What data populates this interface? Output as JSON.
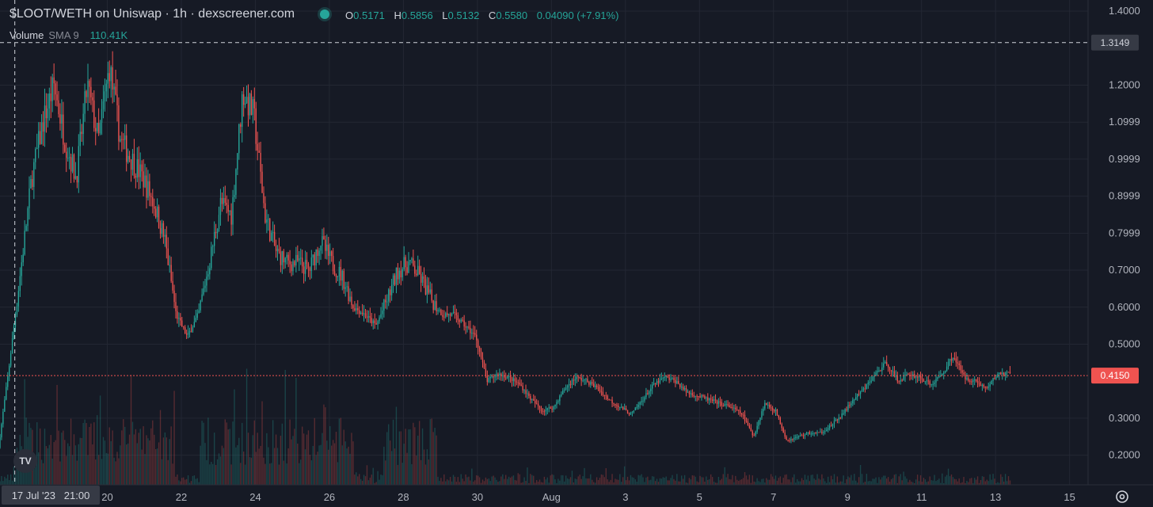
{
  "header": {
    "title": "$LOOT/WETH on Uniswap · 1h · dexscreener.com",
    "ohlc": [
      {
        "k": "O",
        "v": "0.5171"
      },
      {
        "k": "H",
        "v": "0.5856"
      },
      {
        "k": "L",
        "v": "0.5132"
      },
      {
        "k": "C",
        "v": "0.5580"
      },
      {
        "k": "",
        "v": "0.04090 (+7.91%)"
      }
    ],
    "volume_label": "Volume",
    "volume_sma": "SMA 9",
    "volume_value": "110.41K"
  },
  "colors": {
    "up": "#26a69a",
    "down": "#ef5350",
    "background": "#161a25",
    "grid": "#232733"
  },
  "icons": {
    "logo": "tradingview-logo-icon",
    "settings": "gear-icon"
  },
  "chart_data": {
    "type": "candlestick",
    "title": "$LOOT/WETH on Uniswap · 1h · dexscreener.com",
    "interval": "1h",
    "grid": true,
    "y_axis": {
      "side": "right",
      "ylim": [
        0.12,
        1.43
      ],
      "ticks": [
        1.4,
        1.2,
        1.0999,
        0.9999,
        0.8999,
        0.7999,
        0.7,
        0.6,
        0.5,
        0.3,
        0.2
      ],
      "tick_labels": [
        "1.4000",
        "1.2000",
        "1.0999",
        "0.9999",
        "0.8999",
        "0.7999",
        "0.7000",
        "0.6000",
        "0.5000",
        "0.3000",
        "0.2000"
      ]
    },
    "x_axis": {
      "xlim_days": [
        17.1,
        46.5
      ],
      "ticks": [
        {
          "day": 20,
          "label": "20"
        },
        {
          "day": 22,
          "label": "22"
        },
        {
          "day": 24,
          "label": "24"
        },
        {
          "day": 26,
          "label": "26"
        },
        {
          "day": 28,
          "label": "28"
        },
        {
          "day": 30,
          "label": "30"
        },
        {
          "day": 32,
          "label": "Aug"
        },
        {
          "day": 34,
          "label": "3"
        },
        {
          "day": 36,
          "label": "5"
        },
        {
          "day": 38,
          "label": "7"
        },
        {
          "day": 40,
          "label": "9"
        },
        {
          "day": 42,
          "label": "11"
        },
        {
          "day": 44,
          "label": "13"
        },
        {
          "day": 46,
          "label": "15"
        }
      ]
    },
    "crosshair": {
      "price": 1.3149,
      "price_label": "1.3149",
      "day": 17.5,
      "time_label": "17 Jul '23   21:00"
    },
    "last_price": {
      "price": 0.415,
      "label": "0.4150"
    },
    "trend": [
      [
        17.1,
        0.22
      ],
      [
        17.4,
        0.45
      ],
      [
        17.7,
        0.7
      ],
      [
        18.0,
        0.95
      ],
      [
        18.3,
        1.1
      ],
      [
        18.6,
        1.2
      ],
      [
        18.9,
        1.05
      ],
      [
        19.2,
        0.95
      ],
      [
        19.5,
        1.2
      ],
      [
        19.8,
        1.05
      ],
      [
        20.1,
        1.25
      ],
      [
        20.4,
        1.05
      ],
      [
        20.7,
        1.0
      ],
      [
        21.0,
        0.95
      ],
      [
        21.3,
        0.88
      ],
      [
        21.6,
        0.78
      ],
      [
        21.9,
        0.58
      ],
      [
        22.2,
        0.52
      ],
      [
        22.5,
        0.58
      ],
      [
        22.8,
        0.72
      ],
      [
        23.1,
        0.88
      ],
      [
        23.4,
        0.85
      ],
      [
        23.7,
        1.18
      ],
      [
        24.0,
        1.12
      ],
      [
        24.3,
        0.85
      ],
      [
        24.6,
        0.75
      ],
      [
        24.9,
        0.72
      ],
      [
        25.2,
        0.72
      ],
      [
        25.5,
        0.7
      ],
      [
        25.8,
        0.78
      ],
      [
        26.1,
        0.72
      ],
      [
        26.4,
        0.68
      ],
      [
        26.7,
        0.6
      ],
      [
        27.0,
        0.58
      ],
      [
        27.3,
        0.55
      ],
      [
        27.6,
        0.62
      ],
      [
        27.9,
        0.7
      ],
      [
        28.2,
        0.72
      ],
      [
        28.5,
        0.68
      ],
      [
        28.8,
        0.62
      ],
      [
        29.1,
        0.58
      ],
      [
        29.4,
        0.58
      ],
      [
        29.7,
        0.55
      ],
      [
        30.0,
        0.52
      ],
      [
        30.3,
        0.4
      ],
      [
        30.6,
        0.42
      ],
      [
        30.9,
        0.41
      ],
      [
        31.2,
        0.39
      ],
      [
        31.5,
        0.35
      ],
      [
        31.8,
        0.32
      ],
      [
        32.1,
        0.33
      ],
      [
        32.4,
        0.38
      ],
      [
        32.7,
        0.41
      ],
      [
        33.0,
        0.4
      ],
      [
        33.3,
        0.38
      ],
      [
        33.6,
        0.35
      ],
      [
        33.9,
        0.33
      ],
      [
        34.2,
        0.31
      ],
      [
        34.5,
        0.35
      ],
      [
        34.8,
        0.39
      ],
      [
        35.1,
        0.41
      ],
      [
        35.4,
        0.4
      ],
      [
        35.7,
        0.37
      ],
      [
        36.0,
        0.36
      ],
      [
        36.3,
        0.35
      ],
      [
        36.6,
        0.34
      ],
      [
        36.9,
        0.33
      ],
      [
        37.2,
        0.31
      ],
      [
        37.5,
        0.25
      ],
      [
        37.8,
        0.34
      ],
      [
        38.1,
        0.32
      ],
      [
        38.4,
        0.24
      ],
      [
        38.7,
        0.25
      ],
      [
        39.0,
        0.26
      ],
      [
        39.3,
        0.26
      ],
      [
        39.6,
        0.28
      ],
      [
        39.9,
        0.31
      ],
      [
        40.2,
        0.35
      ],
      [
        40.5,
        0.38
      ],
      [
        40.8,
        0.42
      ],
      [
        41.1,
        0.45
      ],
      [
        41.4,
        0.4
      ],
      [
        41.7,
        0.42
      ],
      [
        42.0,
        0.41
      ],
      [
        42.3,
        0.39
      ],
      [
        42.6,
        0.42
      ],
      [
        42.9,
        0.47
      ],
      [
        43.2,
        0.41
      ],
      [
        43.5,
        0.4
      ],
      [
        43.8,
        0.38
      ],
      [
        44.1,
        0.42
      ],
      [
        44.4,
        0.42
      ]
    ]
  }
}
